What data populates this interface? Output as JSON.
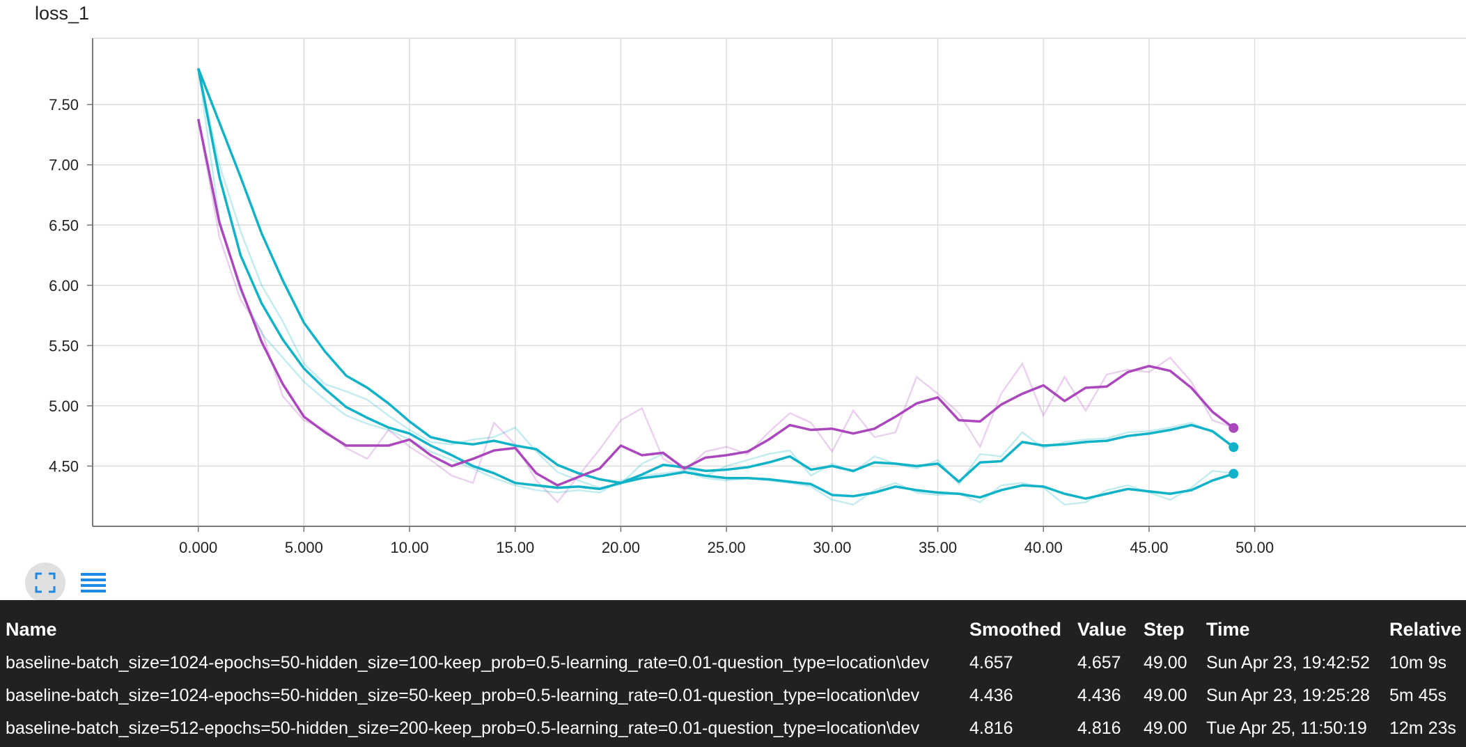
{
  "chart_data": {
    "type": "line",
    "title": "loss_1",
    "xlim": [
      -5,
      60
    ],
    "ylim": [
      4.0,
      8.05
    ],
    "x_ticks": [
      "0.000",
      "5.000",
      "10.00",
      "15.00",
      "20.00",
      "25.00",
      "30.00",
      "35.00",
      "40.00",
      "45.00",
      "50.00"
    ],
    "y_ticks": [
      "4.50",
      "5.00",
      "5.50",
      "6.00",
      "6.50",
      "7.00",
      "7.50"
    ],
    "grid": true,
    "x": [
      0,
      1,
      2,
      3,
      4,
      5,
      6,
      7,
      8,
      9,
      10,
      11,
      12,
      13,
      14,
      15,
      16,
      17,
      18,
      19,
      20,
      21,
      22,
      23,
      24,
      25,
      26,
      27,
      28,
      29,
      30,
      31,
      32,
      33,
      34,
      35,
      36,
      37,
      38,
      39,
      40,
      41,
      42,
      43,
      44,
      45,
      46,
      47,
      48,
      49
    ],
    "series": [
      {
        "color": "#0fb2c6",
        "values": [
          7.8,
          7.35,
          6.9,
          6.43,
          6.04,
          5.69,
          5.45,
          5.25,
          5.15,
          5.02,
          4.87,
          4.74,
          4.7,
          4.68,
          4.71,
          4.67,
          4.64,
          4.51,
          4.44,
          4.39,
          4.36,
          4.43,
          4.51,
          4.49,
          4.46,
          4.47,
          4.49,
          4.53,
          4.58,
          4.47,
          4.5,
          4.46,
          4.53,
          4.52,
          4.5,
          4.52,
          4.37,
          4.53,
          4.54,
          4.7,
          4.67,
          4.68,
          4.7,
          4.71,
          4.75,
          4.77,
          4.8,
          4.84,
          4.79,
          4.657
        ],
        "raw": [
          7.8,
          7.0,
          6.45,
          6.0,
          5.7,
          5.35,
          5.18,
          5.12,
          5.05,
          4.92,
          4.8,
          4.7,
          4.68,
          4.72,
          4.74,
          4.82,
          4.62,
          4.45,
          4.38,
          4.32,
          4.35,
          4.52,
          4.6,
          4.48,
          4.42,
          4.5,
          4.55,
          4.6,
          4.63,
          4.42,
          4.52,
          4.45,
          4.58,
          4.52,
          4.48,
          4.55,
          4.35,
          4.6,
          4.58,
          4.78,
          4.65,
          4.7,
          4.72,
          4.73,
          4.78,
          4.79,
          4.82,
          4.86,
          4.78,
          4.66
        ]
      },
      {
        "color": "#0fb2c6",
        "values": [
          7.8,
          6.9,
          6.25,
          5.85,
          5.55,
          5.31,
          5.14,
          4.99,
          4.9,
          4.82,
          4.77,
          4.67,
          4.59,
          4.5,
          4.44,
          4.36,
          4.34,
          4.32,
          4.33,
          4.31,
          4.36,
          4.4,
          4.42,
          4.45,
          4.42,
          4.4,
          4.4,
          4.39,
          4.37,
          4.35,
          4.26,
          4.25,
          4.28,
          4.33,
          4.3,
          4.28,
          4.27,
          4.24,
          4.3,
          4.34,
          4.33,
          4.27,
          4.23,
          4.27,
          4.31,
          4.29,
          4.27,
          4.3,
          4.38,
          4.436
        ],
        "raw": [
          7.8,
          6.55,
          5.95,
          5.6,
          5.4,
          5.2,
          5.05,
          4.92,
          4.85,
          4.8,
          4.72,
          4.62,
          4.55,
          4.48,
          4.4,
          4.34,
          4.3,
          4.28,
          4.3,
          4.28,
          4.38,
          4.42,
          4.44,
          4.46,
          4.4,
          4.38,
          4.4,
          4.38,
          4.36,
          4.33,
          4.22,
          4.18,
          4.3,
          4.36,
          4.28,
          4.26,
          4.27,
          4.2,
          4.34,
          4.36,
          4.32,
          4.18,
          4.2,
          4.3,
          4.34,
          4.28,
          4.22,
          4.32,
          4.46,
          4.44
        ]
      },
      {
        "color": "#ab47bc",
        "values": [
          7.38,
          6.52,
          5.98,
          5.53,
          5.18,
          4.91,
          4.78,
          4.67,
          4.67,
          4.67,
          4.72,
          4.59,
          4.5,
          4.56,
          4.63,
          4.65,
          4.44,
          4.34,
          4.41,
          4.48,
          4.67,
          4.59,
          4.61,
          4.48,
          4.57,
          4.59,
          4.62,
          4.72,
          4.84,
          4.8,
          4.81,
          4.77,
          4.81,
          4.91,
          5.02,
          5.07,
          4.88,
          4.87,
          5.01,
          5.1,
          5.17,
          5.04,
          5.15,
          5.16,
          5.28,
          5.33,
          5.29,
          5.15,
          4.95,
          4.816
        ],
        "raw": [
          7.38,
          6.4,
          5.88,
          5.62,
          5.08,
          4.88,
          4.8,
          4.65,
          4.56,
          4.8,
          4.66,
          4.55,
          4.42,
          4.36,
          4.86,
          4.68,
          4.38,
          4.2,
          4.42,
          4.64,
          4.88,
          4.98,
          4.56,
          4.46,
          4.62,
          4.66,
          4.6,
          4.78,
          4.94,
          4.86,
          4.62,
          4.96,
          4.74,
          4.78,
          5.24,
          5.1,
          4.94,
          4.66,
          5.1,
          5.35,
          4.92,
          5.24,
          4.96,
          5.26,
          5.3,
          5.28,
          5.4,
          5.2,
          4.88,
          4.82
        ]
      }
    ]
  },
  "toolbar": {
    "fullscreen_icon": "fullscreen-icon",
    "legend_icon": "list-icon"
  },
  "table": {
    "headers": {
      "name": "Name",
      "smoothed": "Smoothed",
      "value": "Value",
      "step": "Step",
      "time": "Time",
      "relative": "Relative"
    },
    "rows": [
      {
        "name": "baseline-batch_size=1024-epochs=50-hidden_size=100-keep_prob=0.5-learning_rate=0.01-question_type=location\\dev",
        "smoothed": "4.657",
        "value": "4.657",
        "step": "49.00",
        "time": "Sun Apr 23, 19:42:52",
        "relative": "10m 9s"
      },
      {
        "name": "baseline-batch_size=1024-epochs=50-hidden_size=50-keep_prob=0.5-learning_rate=0.01-question_type=location\\dev",
        "smoothed": "4.436",
        "value": "4.436",
        "step": "49.00",
        "time": "Sun Apr 23, 19:25:28",
        "relative": "5m 45s"
      },
      {
        "name": "baseline-batch_size=512-epochs=50-hidden_size=200-keep_prob=0.5-learning_rate=0.01-question_type=location\\dev",
        "smoothed": "4.816",
        "value": "4.816",
        "step": "49.00",
        "time": "Tue Apr 25, 11:50:19",
        "relative": "12m 23s"
      }
    ]
  }
}
